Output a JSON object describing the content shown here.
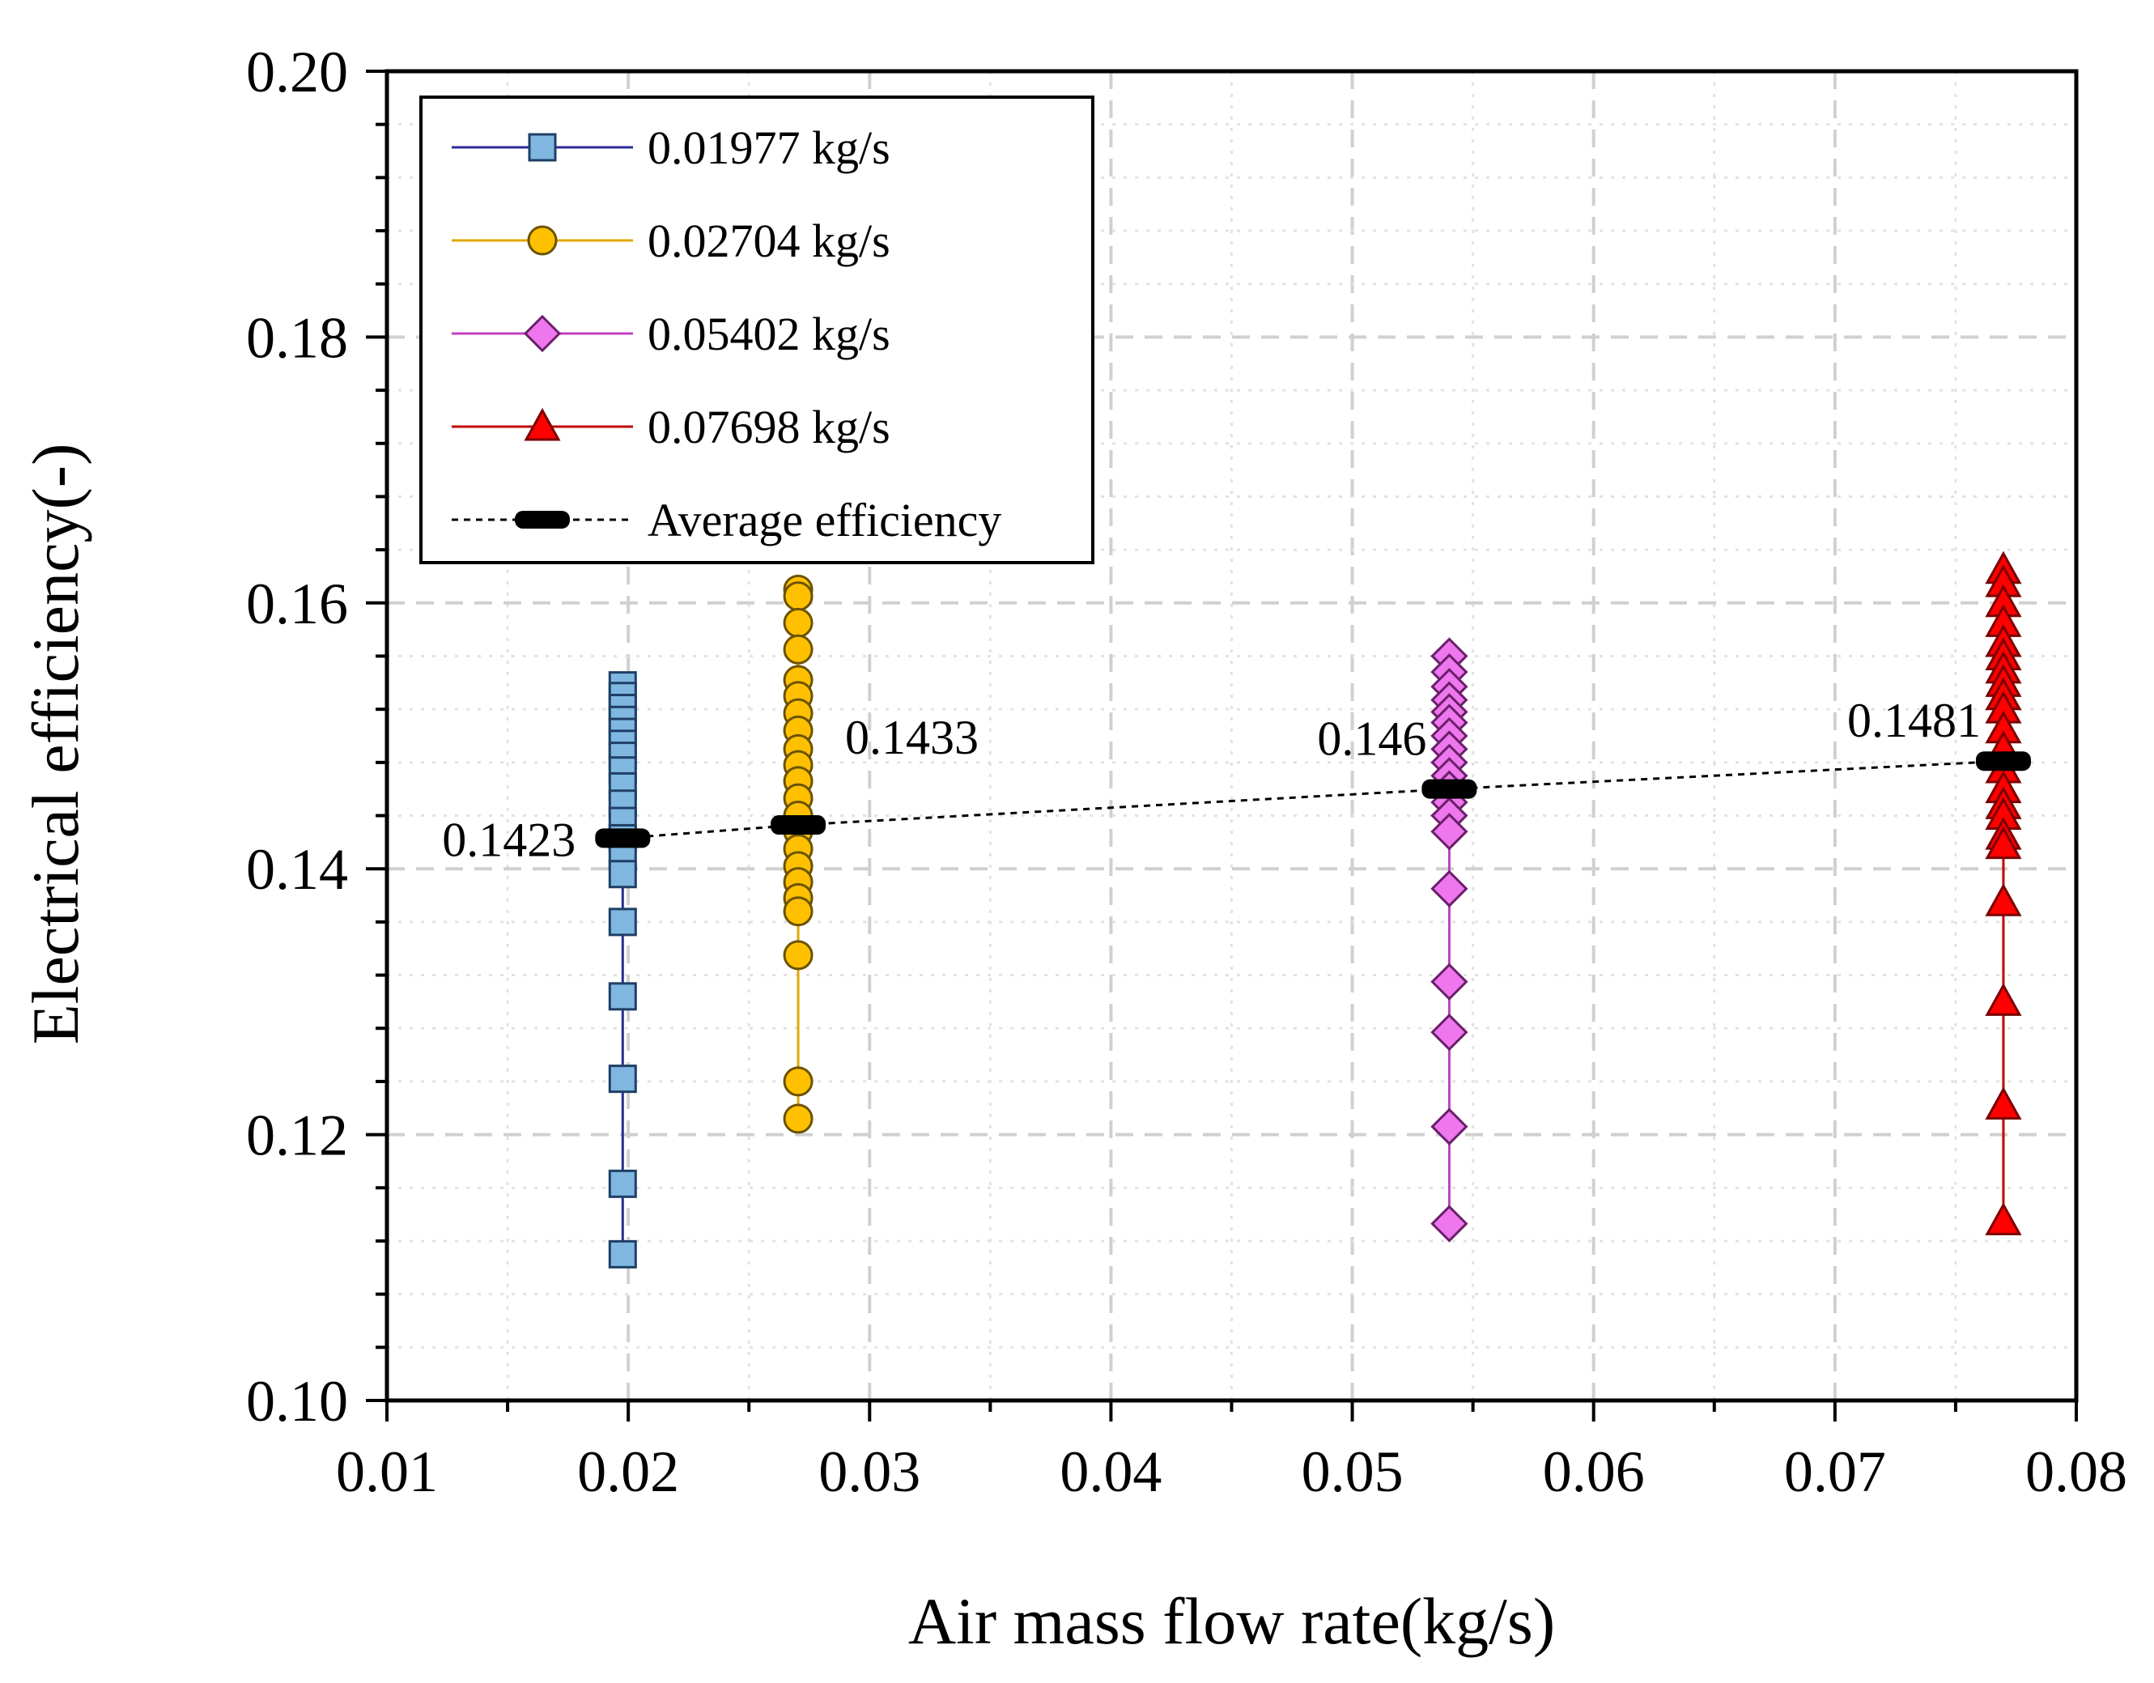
{
  "chart_data": {
    "type": "scatter",
    "xlabel": "Air mass flow rate(kg/s)",
    "ylabel": "Electrical efficiency(-)",
    "xlim": [
      0.01,
      0.08
    ],
    "ylim": [
      0.1,
      0.2
    ],
    "xticks": [
      "0.01",
      "0.02",
      "0.03",
      "0.04",
      "0.05",
      "0.06",
      "0.07",
      "0.08"
    ],
    "yticks": [
      "0.10",
      "0.12",
      "0.14",
      "0.16",
      "0.18",
      "0.20"
    ],
    "grid": true,
    "legend_position": "top-left",
    "series": [
      {
        "name": "0.01977 kg/s",
        "marker": "square",
        "color": "#7fb7e0",
        "line_color": "#2b2b9a",
        "x": 0.01977,
        "values": [
          0.1538,
          0.153,
          0.1521,
          0.1512,
          0.1503,
          0.1494,
          0.1485,
          0.1474,
          0.1462,
          0.1449,
          0.1436,
          0.1423,
          0.141,
          0.1396,
          0.136,
          0.1304,
          0.1242,
          0.1163,
          0.111
        ]
      },
      {
        "name": "0.02704 kg/s",
        "marker": "circle",
        "color": "#ffc000",
        "line_color": "#e0a800",
        "x": 0.02704,
        "values": [
          0.161,
          0.1605,
          0.1585,
          0.1565,
          0.1542,
          0.153,
          0.1517,
          0.1504,
          0.149,
          0.1478,
          0.1466,
          0.1453,
          0.144,
          0.1428,
          0.1415,
          0.1402,
          0.139,
          0.1378,
          0.1368,
          0.1335,
          0.124,
          0.1212
        ]
      },
      {
        "name": "0.05402 kg/s",
        "marker": "diamond",
        "color": "#ee77ee",
        "line_color": "#c040c0",
        "x": 0.05402,
        "values": [
          0.156,
          0.1548,
          0.1537,
          0.1527,
          0.1518,
          0.151,
          0.15,
          0.149,
          0.148,
          0.147,
          0.146,
          0.145,
          0.144,
          0.1428,
          0.1385,
          0.1315,
          0.1277,
          0.1206,
          0.1133
        ]
      },
      {
        "name": "0.07698 kg/s",
        "marker": "triangle",
        "color": "#ff0000",
        "line_color": "#c00000",
        "x": 0.07698,
        "values": [
          0.1625,
          0.1615,
          0.16,
          0.1585,
          0.157,
          0.156,
          0.155,
          0.154,
          0.153,
          0.152,
          0.1505,
          0.149,
          0.1475,
          0.146,
          0.1448,
          0.144,
          0.1425,
          0.1418,
          0.1375,
          0.13,
          0.1222,
          0.1135
        ]
      }
    ],
    "average": {
      "name": "Average efficiency",
      "x": [
        0.01977,
        0.02704,
        0.05402,
        0.07698
      ],
      "values": [
        0.1423,
        0.1433,
        0.146,
        0.1481
      ],
      "labels": [
        "0.1423",
        "0.1433",
        "0.146",
        "0.1481"
      ]
    }
  }
}
